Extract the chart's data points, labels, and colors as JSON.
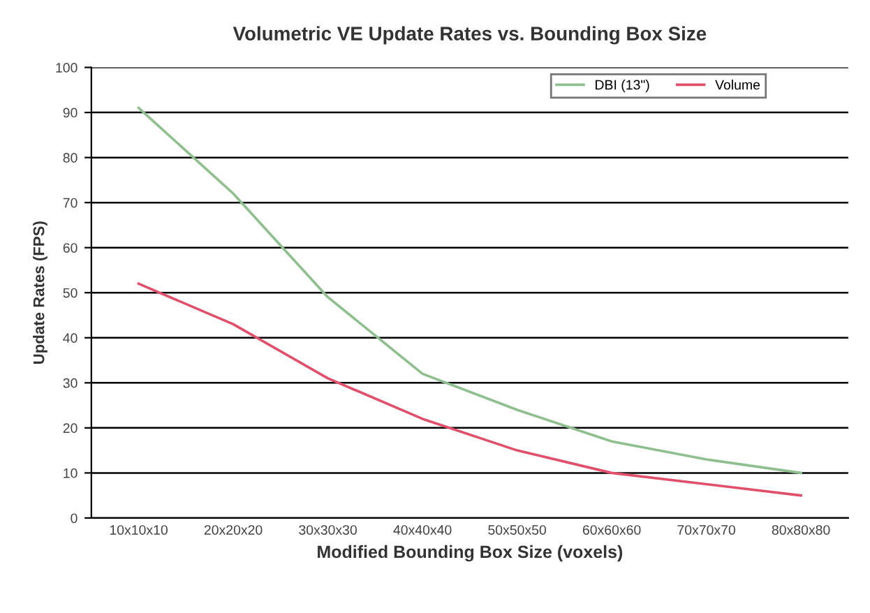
{
  "chart_data": {
    "type": "line",
    "title": "Volumetric VE Update Rates vs. Bounding Box Size",
    "xlabel": "Modified Bounding Box Size (voxels)",
    "ylabel": "Update Rates (FPS)",
    "categories": [
      "10x10x10",
      "20x20x20",
      "30x30x30",
      "40x40x40",
      "50x50x50",
      "60x60x60",
      "70x70x70",
      "80x80x80"
    ],
    "series": [
      {
        "name": "DBI (13\")",
        "color": "#8fbf8f",
        "values": [
          91,
          72,
          49,
          32,
          24,
          17,
          13,
          10
        ]
      },
      {
        "name": "Volume",
        "color": "#e0506a",
        "values": [
          52,
          43,
          31,
          22,
          15,
          10,
          7.5,
          5
        ]
      }
    ],
    "ylim": [
      0,
      100
    ],
    "yticks": [
      0,
      10,
      20,
      30,
      40,
      50,
      60,
      70,
      80,
      90,
      100
    ],
    "grid": "y",
    "legend": "top right",
    "marker": "none",
    "line_style": "solid"
  }
}
